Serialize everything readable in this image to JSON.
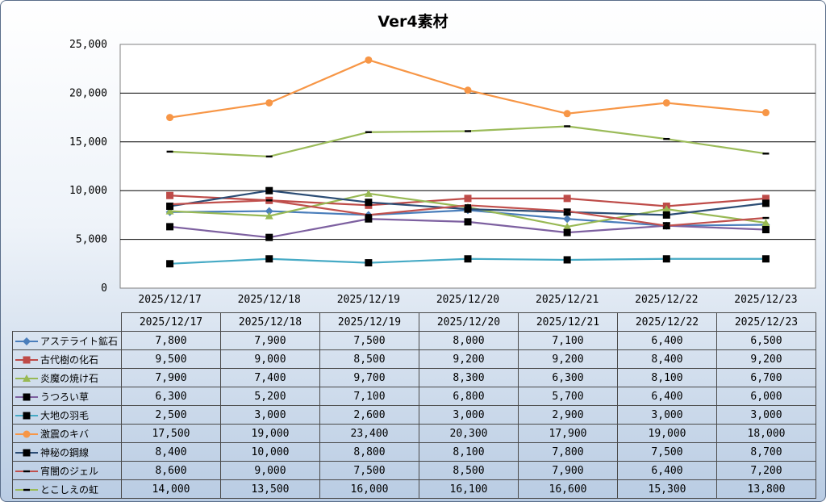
{
  "chart_data": {
    "type": "line",
    "title": "Ver4素材",
    "x": [
      "2025/12/17",
      "2025/12/18",
      "2025/12/19",
      "2025/12/20",
      "2025/12/21",
      "2025/12/22",
      "2025/12/23"
    ],
    "ylim": [
      0,
      25000
    ],
    "yticks": [
      "0",
      "5,000",
      "10,000",
      "15,000",
      "20,000",
      "25,000"
    ],
    "grid": true,
    "legend": "data-table",
    "series": [
      {
        "name": "アステライト鉱石",
        "color": "#4a7ebb",
        "marker": "diamond",
        "values": [
          7800,
          7900,
          7500,
          8000,
          7100,
          6400,
          6500
        ],
        "labels": [
          "7,800",
          "7,900",
          "7,500",
          "8,000",
          "7,100",
          "6,400",
          "6,500"
        ]
      },
      {
        "name": "古代樹の化石",
        "color": "#be4b48",
        "marker": "square",
        "values": [
          9500,
          9000,
          8500,
          9200,
          9200,
          8400,
          9200
        ],
        "labels": [
          "9,500",
          "9,000",
          "8,500",
          "9,200",
          "9,200",
          "8,400",
          "9,200"
        ]
      },
      {
        "name": "炎魔の焼け石",
        "color": "#98b954",
        "marker": "triangle",
        "values": [
          7900,
          7400,
          9700,
          8300,
          6300,
          8100,
          6700
        ],
        "labels": [
          "7,900",
          "7,400",
          "9,700",
          "8,300",
          "6,300",
          "8,100",
          "6,700"
        ]
      },
      {
        "name": "うつろい草",
        "color": "#7d60a0",
        "marker": "blacksquare",
        "values": [
          6300,
          5200,
          7100,
          6800,
          5700,
          6400,
          6000
        ],
        "labels": [
          "6,300",
          "5,200",
          "7,100",
          "6,800",
          "5,700",
          "6,400",
          "6,000"
        ]
      },
      {
        "name": "大地の羽毛",
        "color": "#46aac5",
        "marker": "blacksquare",
        "values": [
          2500,
          3000,
          2600,
          3000,
          2900,
          3000,
          3000
        ],
        "labels": [
          "2,500",
          "3,000",
          "2,600",
          "3,000",
          "2,900",
          "3,000",
          "3,000"
        ]
      },
      {
        "name": "激震のキバ",
        "color": "#f79646",
        "marker": "circle",
        "values": [
          17500,
          19000,
          23400,
          20300,
          17900,
          19000,
          18000
        ],
        "labels": [
          "17,500",
          "19,000",
          "23,400",
          "20,300",
          "17,900",
          "19,000",
          "18,000"
        ]
      },
      {
        "name": "神秘の鋼線",
        "color": "#2c4d75",
        "marker": "blacksquare",
        "values": [
          8400,
          10000,
          8800,
          8100,
          7800,
          7500,
          8700
        ],
        "labels": [
          "8,400",
          "10,000",
          "8,800",
          "8,100",
          "7,800",
          "7,500",
          "8,700"
        ]
      },
      {
        "name": "宵闇のジェル",
        "color": "#c0504d",
        "marker": "dash",
        "values": [
          8600,
          9000,
          7500,
          8500,
          7900,
          6400,
          7200
        ],
        "labels": [
          "8,600",
          "9,000",
          "7,500",
          "8,500",
          "7,900",
          "6,400",
          "7,200"
        ]
      },
      {
        "name": "とこしえの虹",
        "color": "#9bbb59",
        "marker": "dash",
        "values": [
          14000,
          13500,
          16000,
          16100,
          16600,
          15300,
          13800
        ],
        "labels": [
          "14,000",
          "13,500",
          "16,000",
          "16,100",
          "16,600",
          "15,300",
          "13,800"
        ]
      }
    ]
  }
}
